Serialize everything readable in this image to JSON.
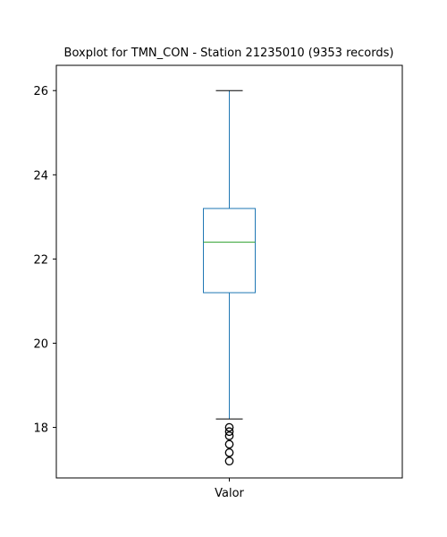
{
  "chart_data": {
    "type": "boxplot",
    "title": "Boxplot for TMN_CON - Station 21235010 (9353 records)",
    "xlabel": "",
    "ylabel": "",
    "categories": [
      "Valor"
    ],
    "ylim": [
      16.8,
      26.6
    ],
    "yticks": [
      18,
      20,
      22,
      24,
      26
    ],
    "grid": false,
    "legend": "none",
    "colors": {
      "box": "#1f77b4",
      "median": "#2ca02c",
      "whisker": "#1f77b4",
      "cap": "#000000",
      "outlier": "#000000",
      "axes": "#000000"
    },
    "boxes": [
      {
        "category": "Valor",
        "whisker_low": 18.2,
        "q1": 21.2,
        "median": 22.4,
        "q3": 23.2,
        "whisker_high": 26.0,
        "outliers": [
          18.0,
          17.9,
          17.8,
          17.6,
          17.4,
          17.2
        ]
      }
    ]
  }
}
